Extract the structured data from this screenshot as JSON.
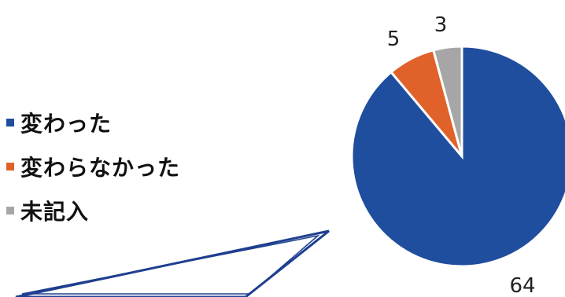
{
  "chart_data": {
    "type": "pie",
    "categories": [
      "変わった",
      "変わらなかった",
      "未記入"
    ],
    "values": [
      64,
      5,
      3
    ],
    "colors": [
      "#1f4e9e",
      "#e0612a",
      "#a6a6a6"
    ],
    "data_labels": [
      "64",
      "5",
      "3"
    ],
    "legend_position": "left",
    "title": ""
  }
}
